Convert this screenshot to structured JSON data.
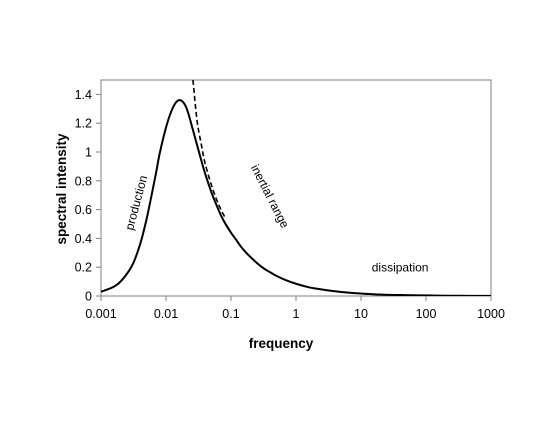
{
  "chart_data": {
    "type": "line",
    "title": "",
    "xlabel": "frequency",
    "ylabel": "spectral intensity",
    "x_scale": "log",
    "xlim": [
      0.001,
      1000
    ],
    "ylim": [
      0,
      1.5
    ],
    "x_ticks": [
      {
        "value": 0.001,
        "label": "0.001"
      },
      {
        "value": 0.01,
        "label": "0.01"
      },
      {
        "value": 0.1,
        "label": "0.1"
      },
      {
        "value": 1,
        "label": "1"
      },
      {
        "value": 10,
        "label": "10"
      },
      {
        "value": 100,
        "label": "100"
      },
      {
        "value": 1000,
        "label": "1000"
      }
    ],
    "y_ticks": [
      {
        "value": 0,
        "label": "0"
      },
      {
        "value": 0.2,
        "label": "0.2"
      },
      {
        "value": 0.4,
        "label": "0.4"
      },
      {
        "value": 0.6,
        "label": "0.6"
      },
      {
        "value": 0.8,
        "label": "0.8"
      },
      {
        "value": 1,
        "label": "1"
      },
      {
        "value": 1.2,
        "label": "1.2"
      },
      {
        "value": 1.4,
        "label": "1.4"
      }
    ],
    "grid": false,
    "legend": "none",
    "series": [
      {
        "style": "solid",
        "x": [
          0.001,
          0.0015,
          0.002,
          0.003,
          0.004,
          0.005,
          0.006,
          0.007,
          0.008,
          0.01,
          0.012,
          0.014,
          0.016,
          0.018,
          0.02,
          0.022,
          0.025,
          0.03,
          0.035,
          0.04,
          0.05,
          0.06,
          0.07,
          0.08,
          0.1,
          0.12,
          0.15,
          0.2,
          0.3,
          0.4,
          0.5,
          0.7,
          1,
          1.5,
          2,
          3,
          5,
          7,
          10,
          20,
          50,
          100,
          200,
          500,
          1000
        ],
        "y": [
          0.03,
          0.06,
          0.1,
          0.21,
          0.36,
          0.53,
          0.7,
          0.85,
          0.99,
          1.17,
          1.28,
          1.34,
          1.36,
          1.35,
          1.32,
          1.27,
          1.18,
          1.05,
          0.94,
          0.85,
          0.72,
          0.63,
          0.56,
          0.51,
          0.44,
          0.39,
          0.33,
          0.27,
          0.2,
          0.165,
          0.14,
          0.11,
          0.085,
          0.063,
          0.052,
          0.04,
          0.028,
          0.022,
          0.017,
          0.01,
          0.006,
          0.004,
          0.002,
          0.001,
          0.0005
        ]
      },
      {
        "style": "dashed",
        "x": [
          0.026,
          0.03,
          0.035,
          0.04,
          0.05,
          0.06,
          0.07,
          0.08
        ],
        "y": [
          1.5,
          1.22,
          1.05,
          0.92,
          0.77,
          0.67,
          0.6,
          0.55
        ]
      }
    ],
    "annotations": [
      {
        "text": "production",
        "x": 0.004,
        "y": 0.64,
        "angle": -75
      },
      {
        "text": "inertial range",
        "x": 0.35,
        "y": 0.68,
        "angle": 63
      },
      {
        "text": "dissipation",
        "x": 40,
        "y": 0.17,
        "angle": 0
      }
    ]
  }
}
